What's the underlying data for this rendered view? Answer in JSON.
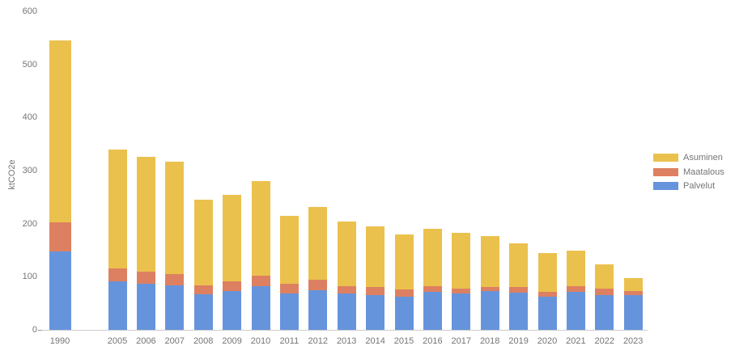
{
  "chart_data": {
    "type": "bar",
    "stacked": true,
    "title": "",
    "xlabel": "",
    "ylabel": "ktCO2e",
    "ylim": [
      0,
      600
    ],
    "yticks": [
      0,
      100,
      200,
      300,
      400,
      500,
      600
    ],
    "grid": false,
    "legend_position": "right",
    "legend_order_top_to_bottom": [
      "Asuminen",
      "Maatalous",
      "Palvelut"
    ],
    "categories": [
      "1990",
      "2005",
      "2006",
      "2007",
      "2008",
      "2009",
      "2010",
      "2011",
      "2012",
      "2013",
      "2014",
      "2015",
      "2016",
      "2017",
      "2018",
      "2019",
      "2020",
      "2021",
      "2022",
      "2023"
    ],
    "series": [
      {
        "name": "Palvelut",
        "color": "#6694DC",
        "values": [
          148,
          92,
          87,
          84,
          67,
          73,
          82,
          68,
          74,
          68,
          66,
          62,
          72,
          69,
          73,
          70,
          62,
          71,
          66,
          66
        ]
      },
      {
        "name": "Maatalous",
        "color": "#DD8062",
        "values": [
          55,
          24,
          23,
          21,
          17,
          18,
          20,
          19,
          20,
          14,
          15,
          14,
          10,
          9,
          7,
          11,
          9,
          11,
          11,
          7
        ]
      },
      {
        "name": "Asuminen",
        "color": "#EBC14D",
        "values": [
          342,
          224,
          216,
          211,
          161,
          163,
          178,
          128,
          137,
          122,
          114,
          104,
          109,
          104,
          96,
          82,
          73,
          67,
          47,
          25
        ]
      }
    ],
    "totals": [
      545,
      340,
      326,
      316,
      245,
      254,
      280,
      215,
      231,
      204,
      195,
      180,
      191,
      182,
      176,
      163,
      144,
      149,
      124,
      98
    ]
  },
  "colors": {
    "background": "#ffffff",
    "axis_line": "#cccccc",
    "tick_label": "#757575"
  }
}
